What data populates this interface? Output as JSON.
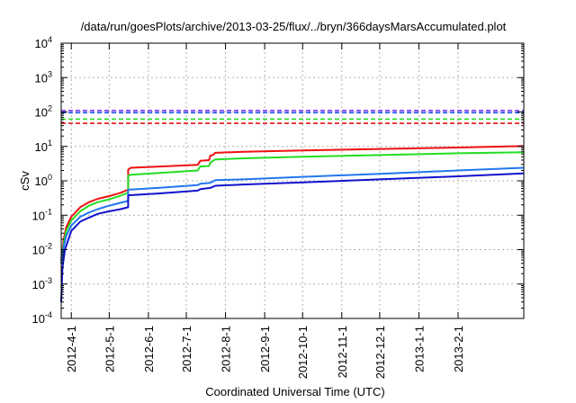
{
  "chart_data": {
    "type": "line",
    "title": "/data/run/goesPlots/archive/2013-03-25/flux/../bryn/366daysMarsAccumulated.plot",
    "xlabel": "Coordinated Universal Time (UTC)",
    "ylabel": "cSv",
    "yscale": "log",
    "ylim": [
      0.0001,
      10000
    ],
    "xlim": [
      "2012-03-24",
      "2013-03-25"
    ],
    "grid": true,
    "legend": "none",
    "y_ticks": [
      {
        "value": 0.0001,
        "base": "10",
        "exp": "-4"
      },
      {
        "value": 0.001,
        "base": "10",
        "exp": "-3"
      },
      {
        "value": 0.01,
        "base": "10",
        "exp": "-2"
      },
      {
        "value": 0.1,
        "base": "10",
        "exp": "-1"
      },
      {
        "value": 1,
        "base": "10",
        "exp": "0"
      },
      {
        "value": 10,
        "base": "10",
        "exp": "1"
      },
      {
        "value": 100,
        "base": "10",
        "exp": "2"
      },
      {
        "value": 1000,
        "base": "10",
        "exp": "3"
      },
      {
        "value": 10000,
        "base": "10",
        "exp": "4"
      }
    ],
    "x_ticks": [
      "2012-4-1",
      "2012-5-1",
      "2012-6-1",
      "2012-7-1",
      "2012-8-1",
      "2012-9-1",
      "2012-10-1",
      "2012-11-1",
      "2012-12-1",
      "2013-1-1",
      "2013-2-1"
    ],
    "x_tick_dates": [
      "2012-04-01",
      "2012-05-01",
      "2012-06-01",
      "2012-07-01",
      "2012-08-01",
      "2012-09-01",
      "2012-10-01",
      "2012-11-01",
      "2012-12-01",
      "2013-01-01",
      "2013-02-01"
    ],
    "reference_lines": [
      {
        "color": "#7733ff",
        "y": 110
      },
      {
        "color": "#2255ee",
        "y": 95
      },
      {
        "color": "#22dd22",
        "y": 62
      },
      {
        "color": "#ee1111",
        "y": 47
      }
    ],
    "series": [
      {
        "color": "#ee1111",
        "points": [
          [
            "2012-03-24",
            0.005
          ],
          [
            "2012-03-26",
            0.02
          ],
          [
            "2012-03-28",
            0.045
          ],
          [
            "2012-04-01",
            0.09
          ],
          [
            "2012-04-08",
            0.17
          ],
          [
            "2012-04-15",
            0.24
          ],
          [
            "2012-04-22",
            0.3
          ],
          [
            "2012-05-01",
            0.36
          ],
          [
            "2012-05-10",
            0.45
          ],
          [
            "2012-05-16",
            0.55
          ],
          [
            "2012-05-16",
            2.1
          ],
          [
            "2012-05-18",
            2.4
          ],
          [
            "2012-06-10",
            2.6
          ],
          [
            "2012-07-10",
            2.9
          ],
          [
            "2012-07-12",
            3.8
          ],
          [
            "2012-07-19",
            4.0
          ],
          [
            "2012-07-20",
            5.4
          ],
          [
            "2012-07-22",
            5.6
          ],
          [
            "2012-07-24",
            6.5
          ],
          [
            "2012-08-15",
            7.0
          ],
          [
            "2012-10-01",
            7.6
          ],
          [
            "2012-12-01",
            8.4
          ],
          [
            "2013-02-01",
            9.3
          ],
          [
            "2013-03-25",
            10.2
          ]
        ]
      },
      {
        "color": "#22dd22",
        "points": [
          [
            "2012-03-24",
            0.004
          ],
          [
            "2012-03-26",
            0.015
          ],
          [
            "2012-03-28",
            0.035
          ],
          [
            "2012-04-01",
            0.07
          ],
          [
            "2012-04-08",
            0.13
          ],
          [
            "2012-04-15",
            0.19
          ],
          [
            "2012-04-22",
            0.24
          ],
          [
            "2012-05-01",
            0.29
          ],
          [
            "2012-05-10",
            0.37
          ],
          [
            "2012-05-16",
            0.45
          ],
          [
            "2012-05-16",
            1.4
          ],
          [
            "2012-05-18",
            1.5
          ],
          [
            "2012-06-10",
            1.7
          ],
          [
            "2012-07-10",
            2.0
          ],
          [
            "2012-07-12",
            2.6
          ],
          [
            "2012-07-19",
            2.7
          ],
          [
            "2012-07-20",
            3.4
          ],
          [
            "2012-07-24",
            4.2
          ],
          [
            "2012-08-15",
            4.5
          ],
          [
            "2012-10-01",
            5.0
          ],
          [
            "2012-12-01",
            5.6
          ],
          [
            "2013-02-01",
            6.3
          ],
          [
            "2013-03-25",
            6.8
          ]
        ]
      },
      {
        "color": "#2277ee",
        "points": [
          [
            "2012-03-24",
            0.004
          ],
          [
            "2012-03-26",
            0.012
          ],
          [
            "2012-03-28",
            0.025
          ],
          [
            "2012-04-01",
            0.05
          ],
          [
            "2012-04-08",
            0.09
          ],
          [
            "2012-04-15",
            0.12
          ],
          [
            "2012-04-22",
            0.15
          ],
          [
            "2012-05-01",
            0.19
          ],
          [
            "2012-05-10",
            0.23
          ],
          [
            "2012-05-16",
            0.26
          ],
          [
            "2012-05-16",
            0.55
          ],
          [
            "2012-06-10",
            0.63
          ],
          [
            "2012-07-10",
            0.75
          ],
          [
            "2012-07-12",
            0.82
          ],
          [
            "2012-07-20",
            0.87
          ],
          [
            "2012-07-24",
            1.05
          ],
          [
            "2012-08-15",
            1.1
          ],
          [
            "2012-10-01",
            1.3
          ],
          [
            "2012-12-01",
            1.6
          ],
          [
            "2013-02-01",
            2.0
          ],
          [
            "2013-03-25",
            2.4
          ]
        ]
      },
      {
        "color": "#1111cc",
        "points": [
          [
            "2012-03-24",
            0.0003
          ],
          [
            "2012-03-25",
            0.003
          ],
          [
            "2012-03-27",
            0.01
          ],
          [
            "2012-04-01",
            0.035
          ],
          [
            "2012-04-08",
            0.065
          ],
          [
            "2012-04-15",
            0.085
          ],
          [
            "2012-04-22",
            0.11
          ],
          [
            "2012-05-01",
            0.13
          ],
          [
            "2012-05-10",
            0.15
          ],
          [
            "2012-05-16",
            0.17
          ],
          [
            "2012-05-16",
            0.38
          ],
          [
            "2012-06-10",
            0.43
          ],
          [
            "2012-07-10",
            0.52
          ],
          [
            "2012-07-12",
            0.57
          ],
          [
            "2012-07-20",
            0.62
          ],
          [
            "2012-07-24",
            0.72
          ],
          [
            "2012-08-15",
            0.78
          ],
          [
            "2012-10-01",
            0.9
          ],
          [
            "2012-12-01",
            1.1
          ],
          [
            "2013-02-01",
            1.35
          ],
          [
            "2013-03-25",
            1.65
          ]
        ]
      }
    ]
  }
}
